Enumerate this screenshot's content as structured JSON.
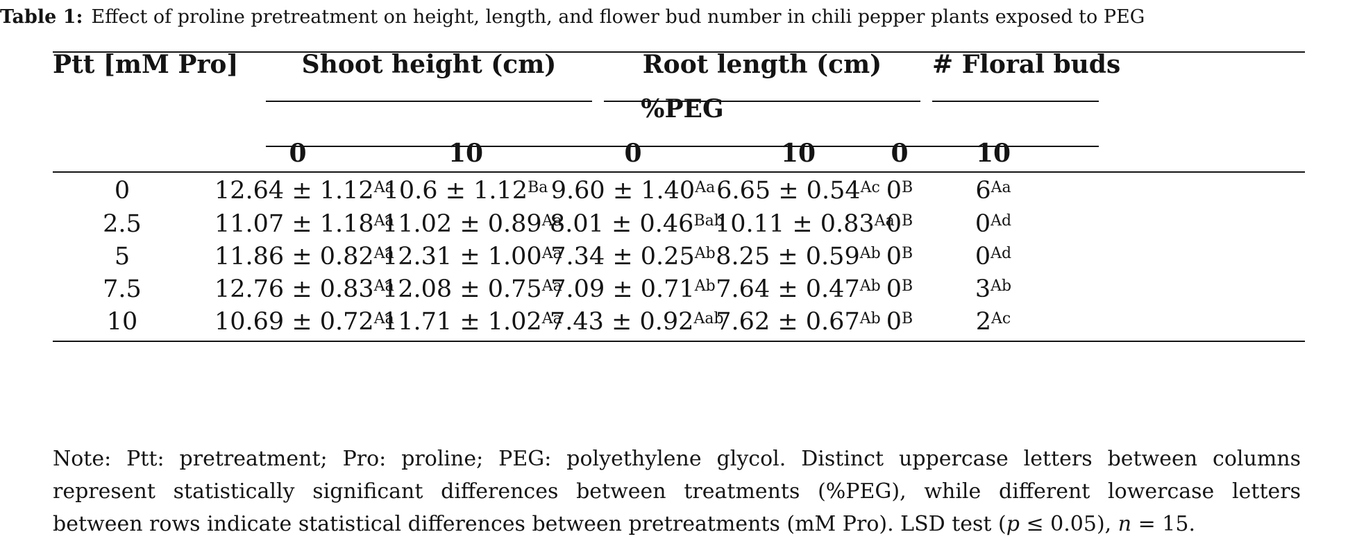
{
  "caption": {
    "label": "Table 1:",
    "text": "Effect of proline pretreatment on height, length, and flower bud number in chili pepper plants exposed to PEG"
  },
  "table": {
    "row_header": "Ptt [mM Pro]",
    "groups": [
      "Shoot height (cm)",
      "Root length (cm)",
      "# Floral buds"
    ],
    "subgroup": "%PEG",
    "peg_levels": [
      "0",
      "10",
      "0",
      "10",
      "0",
      "10"
    ],
    "rows": [
      {
        "ptt": "0",
        "cells": [
          [
            "12.64 ± 1.12",
            "Aa"
          ],
          [
            "10.6 ± 1.12",
            "Ba"
          ],
          [
            "9.60 ± 1.40",
            "Aa"
          ],
          [
            "6.65 ± 0.54",
            "Ac"
          ],
          [
            "0",
            "B"
          ],
          [
            "6",
            "Aa"
          ]
        ]
      },
      {
        "ptt": "2.5",
        "cells": [
          [
            "11.07 ± 1.18",
            "Aa"
          ],
          [
            "11.02 ± 0.89",
            "Aa"
          ],
          [
            "8.01 ± 0.46",
            "Bab"
          ],
          [
            "10.11 ± 0.83",
            "Aa"
          ],
          [
            "0",
            "B"
          ],
          [
            "0",
            "Ad"
          ]
        ]
      },
      {
        "ptt": "5",
        "cells": [
          [
            "11.86 ± 0.82",
            "Aa"
          ],
          [
            "12.31 ± 1.00",
            "Aa"
          ],
          [
            "7.34 ± 0.25",
            "Ab"
          ],
          [
            "8.25 ± 0.59",
            "Ab"
          ],
          [
            "0",
            "B"
          ],
          [
            "0",
            "Ad"
          ]
        ]
      },
      {
        "ptt": "7.5",
        "cells": [
          [
            "12.76 ± 0.83",
            "Aa"
          ],
          [
            "12.08 ± 0.75",
            "Aa"
          ],
          [
            "7.09 ± 0.71",
            "Ab"
          ],
          [
            "7.64 ± 0.47",
            "Ab"
          ],
          [
            "0",
            "B"
          ],
          [
            "3",
            "Ab"
          ]
        ]
      },
      {
        "ptt": "10",
        "cells": [
          [
            "10.69 ± 0.72",
            "Aa"
          ],
          [
            "11.71 ± 1.02",
            "Aa"
          ],
          [
            "7.43 ± 0.92",
            "Aab"
          ],
          [
            "7.62 ± 0.67",
            "Ab"
          ],
          [
            "0",
            "B"
          ],
          [
            "2",
            "Ac"
          ]
        ]
      }
    ]
  },
  "note": {
    "line1": "Note: Ptt: pretreatment; Pro: proline; PEG: polyethylene glycol. Distinct uppercase letters between columns",
    "line2": "represent statistically significant differences between treatments (%PEG), while different lowercase letters",
    "line3_a": "between rows indicate statistical differences between pretreatments (mM Pro). LSD test (",
    "line3_p": "p",
    "line3_b": " ≤ 0.05), ",
    "line3_n": "n",
    "line3_c": " = 15."
  }
}
